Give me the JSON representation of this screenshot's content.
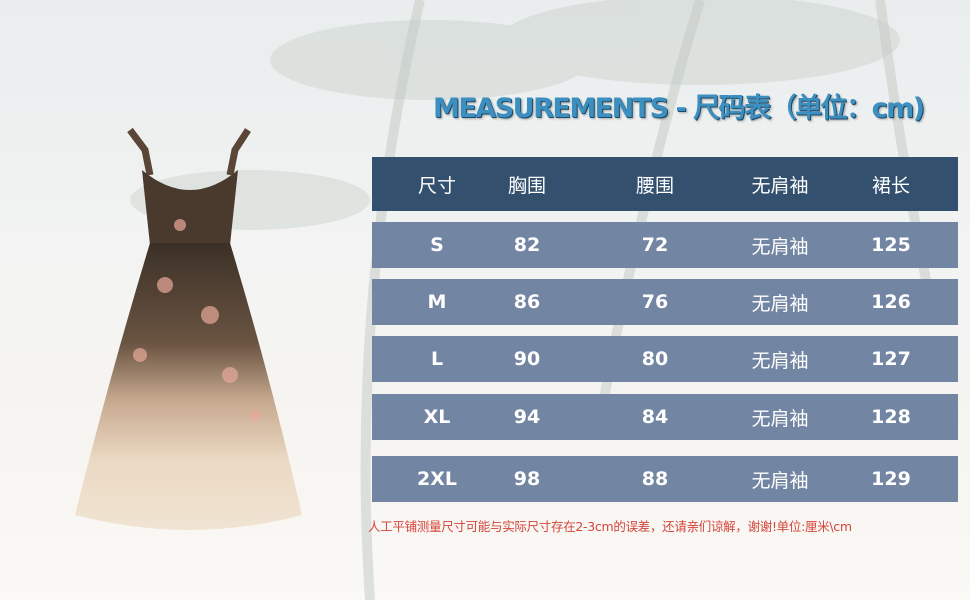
{
  "title": "MEASUREMENTS - 尺码表（单位：cm)",
  "table": {
    "headers": [
      "尺寸",
      "胸围",
      "腰围",
      "无肩袖",
      "裙长"
    ],
    "rows": [
      [
        "S",
        "82",
        "72",
        "无肩袖",
        "125"
      ],
      [
        "M",
        "86",
        "76",
        "无肩袖",
        "126"
      ],
      [
        "L",
        "90",
        "80",
        "无肩袖",
        "127"
      ],
      [
        "XL",
        "94",
        "84",
        "无肩袖",
        "128"
      ],
      [
        "2XL",
        "98",
        "88",
        "无肩袖",
        "129"
      ]
    ]
  },
  "note": "人工平铺测量尺寸可能与实际尺寸存在2-3cm的误差，还请亲们谅解，谢谢!单位:厘米\\cm",
  "colors": {
    "header": "#34506f",
    "row": "#7285a2",
    "title": "#3d8fbf",
    "note": "#d5453a"
  }
}
